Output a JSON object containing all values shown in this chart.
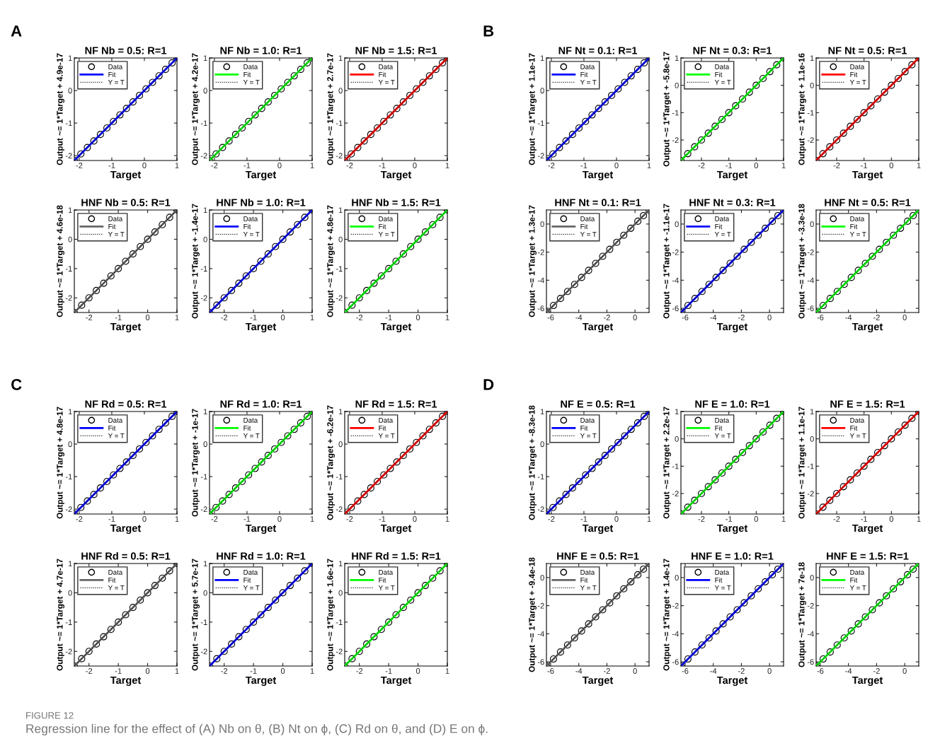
{
  "chart_data": [
    {
      "type": "scatter",
      "title": "NF Nb = 0.5: R=1",
      "xlabel": "Target",
      "ylabel": "Output ~= 1*Target + 4.9e-17",
      "annotations": [
        "A"
      ],
      "xlim": [
        -2.15,
        1
      ],
      "ylim": [
        -2.15,
        1
      ],
      "xticks": [
        -2,
        -1,
        0,
        1
      ],
      "yticks": [
        -2,
        -1,
        0,
        1
      ],
      "legend": "top left",
      "x": [
        -2.15,
        -1.95,
        -1.75,
        -1.55,
        -1.35,
        -1.15,
        -0.95,
        -0.75,
        -0.55,
        -0.35,
        -0.15,
        0.05,
        0.25,
        0.45,
        0.65,
        0.85,
        1
      ],
      "series": [
        {
          "name": "Data",
          "marker": "circle",
          "color": "#000000",
          "values": [
            -2.15,
            -1.95,
            -1.75,
            -1.55,
            -1.35,
            -1.15,
            -0.95,
            -0.75,
            -0.55,
            -0.35,
            -0.15,
            0.05,
            0.25,
            0.45,
            0.65,
            0.85,
            1
          ]
        },
        {
          "name": "Fit",
          "type": "line",
          "color": "#0000ff",
          "x": [
            -2.15,
            1
          ],
          "values": [
            -2.15,
            1
          ]
        },
        {
          "name": "Y = T",
          "type": "line",
          "line_style": "dotted",
          "color": "#000000",
          "x": [
            -2.15,
            1
          ],
          "values": [
            -2.15,
            1
          ]
        }
      ]
    },
    {
      "type": "scatter",
      "title": "NF Nb = 1.0: R=1",
      "xlabel": "Target",
      "ylabel": "Output ~= 1*Target + 4.2e-17",
      "xlim": [
        -2.15,
        1
      ],
      "ylim": [
        -2.15,
        1
      ],
      "xticks": [
        -2,
        -1,
        0,
        1
      ],
      "yticks": [
        -2,
        -1,
        0,
        1
      ],
      "legend": "top left",
      "x": [
        -2.15,
        -1.95,
        -1.75,
        -1.55,
        -1.35,
        -1.15,
        -0.95,
        -0.75,
        -0.55,
        -0.35,
        -0.15,
        0.05,
        0.25,
        0.45,
        0.65,
        0.85,
        1
      ],
      "series": [
        {
          "name": "Data",
          "marker": "circle",
          "color": "#000000",
          "values": [
            -2.15,
            -1.95,
            -1.75,
            -1.55,
            -1.35,
            -1.15,
            -0.95,
            -0.75,
            -0.55,
            -0.35,
            -0.15,
            0.05,
            0.25,
            0.45,
            0.65,
            0.85,
            1
          ]
        },
        {
          "name": "Fit",
          "type": "line",
          "color": "#00ff00",
          "x": [
            -2.15,
            1
          ],
          "values": [
            -2.15,
            1
          ]
        },
        {
          "name": "Y = T",
          "type": "line",
          "line_style": "dotted",
          "color": "#000000",
          "x": [
            -2.15,
            1
          ],
          "values": [
            -2.15,
            1
          ]
        }
      ]
    },
    {
      "type": "scatter",
      "title": "NF Nb = 1.5: R=1",
      "xlabel": "Target",
      "ylabel": "Output ~= 1*Target + 2.7e-17",
      "xlim": [
        -2.15,
        1
      ],
      "ylim": [
        -2.15,
        1
      ],
      "xticks": [
        -2,
        -1,
        0,
        1
      ],
      "yticks": [
        -2,
        -1,
        0,
        1
      ],
      "legend": "top left",
      "x": [
        -2.15,
        -1.95,
        -1.75,
        -1.55,
        -1.35,
        -1.15,
        -0.95,
        -0.75,
        -0.55,
        -0.35,
        -0.15,
        0.05,
        0.25,
        0.45,
        0.65,
        0.85,
        1
      ],
      "series": [
        {
          "name": "Data",
          "marker": "circle",
          "color": "#000000",
          "values": [
            -2.15,
            -1.95,
            -1.75,
            -1.55,
            -1.35,
            -1.15,
            -0.95,
            -0.75,
            -0.55,
            -0.35,
            -0.15,
            0.05,
            0.25,
            0.45,
            0.65,
            0.85,
            1
          ]
        },
        {
          "name": "Fit",
          "type": "line",
          "color": "#ff0000",
          "x": [
            -2.15,
            1
          ],
          "values": [
            -2.15,
            1
          ]
        },
        {
          "name": "Y = T",
          "type": "line",
          "line_style": "dotted",
          "color": "#000000",
          "x": [
            -2.15,
            1
          ],
          "values": [
            -2.15,
            1
          ]
        }
      ]
    },
    {
      "type": "scatter",
      "title": "HNF Nb = 0.5: R=1",
      "xlabel": "Target",
      "ylabel": "Output ~= 1*Target + 4.6e-18",
      "xlim": [
        -2.5,
        1
      ],
      "ylim": [
        -2.5,
        1
      ],
      "xticks": [
        -2,
        -1,
        0,
        1
      ],
      "yticks": [
        -2,
        -1,
        0,
        1
      ],
      "legend": "top left",
      "x": [
        -2.5,
        -2.25,
        -2,
        -1.75,
        -1.5,
        -1.25,
        -1,
        -0.75,
        -0.5,
        -0.25,
        0,
        0.25,
        0.5,
        0.75,
        1
      ],
      "series": [
        {
          "name": "Data",
          "marker": "circle",
          "color": "#000000",
          "values": [
            -2.5,
            -2.25,
            -2,
            -1.75,
            -1.5,
            -1.25,
            -1,
            -0.75,
            -0.5,
            -0.25,
            0,
            0.25,
            0.5,
            0.75,
            1
          ]
        },
        {
          "name": "Fit",
          "type": "line",
          "color": "#666666",
          "x": [
            -2.5,
            1
          ],
          "values": [
            -2.5,
            1
          ]
        },
        {
          "name": "Y = T",
          "type": "line",
          "line_style": "dotted",
          "color": "#000000",
          "x": [
            -2.5,
            1
          ],
          "values": [
            -2.5,
            1
          ]
        }
      ]
    },
    {
      "type": "scatter",
      "title": "HNF Nb = 1.0: R=1",
      "xlabel": "Target",
      "ylabel": "Output ~= 1*Target + -1.4e-17",
      "xlim": [
        -2.5,
        1
      ],
      "ylim": [
        -2.5,
        1
      ],
      "xticks": [
        -2,
        -1,
        0,
        1
      ],
      "yticks": [
        -2,
        -1,
        0,
        1
      ],
      "legend": "top left",
      "x": [
        -2.5,
        -2.25,
        -2,
        -1.75,
        -1.5,
        -1.25,
        -1,
        -0.75,
        -0.5,
        -0.25,
        0,
        0.25,
        0.5,
        0.75,
        1
      ],
      "series": [
        {
          "name": "Data",
          "marker": "circle",
          "color": "#000000",
          "values": [
            -2.5,
            -2.25,
            -2,
            -1.75,
            -1.5,
            -1.25,
            -1,
            -0.75,
            -0.5,
            -0.25,
            0,
            0.25,
            0.5,
            0.75,
            1
          ]
        },
        {
          "name": "Fit",
          "type": "line",
          "color": "#0000ff",
          "x": [
            -2.5,
            1
          ],
          "values": [
            -2.5,
            1
          ]
        },
        {
          "name": "Y = T",
          "type": "line",
          "line_style": "dotted",
          "color": "#000000",
          "x": [
            -2.5,
            1
          ],
          "values": [
            -2.5,
            1
          ]
        }
      ]
    },
    {
      "type": "scatter",
      "title": "HNF Nb = 1.5: R=1",
      "xlabel": "Target",
      "ylabel": "Output ~= 1*Target + 4.8e-17",
      "xlim": [
        -2.5,
        1
      ],
      "ylim": [
        -2.5,
        1
      ],
      "xticks": [
        -2,
        -1,
        0,
        1
      ],
      "yticks": [
        -2,
        -1,
        0,
        1
      ],
      "legend": "top left",
      "x": [
        -2.5,
        -2.25,
        -2,
        -1.75,
        -1.5,
        -1.25,
        -1,
        -0.75,
        -0.5,
        -0.25,
        0,
        0.25,
        0.5,
        0.75,
        1
      ],
      "series": [
        {
          "name": "Data",
          "marker": "circle",
          "color": "#000000",
          "values": [
            -2.5,
            -2.25,
            -2,
            -1.75,
            -1.5,
            -1.25,
            -1,
            -0.75,
            -0.5,
            -0.25,
            0,
            0.25,
            0.5,
            0.75,
            1
          ]
        },
        {
          "name": "Fit",
          "type": "line",
          "color": "#00ff00",
          "x": [
            -2.5,
            1
          ],
          "values": [
            -2.5,
            1
          ]
        },
        {
          "name": "Y = T",
          "type": "line",
          "line_style": "dotted",
          "color": "#000000",
          "x": [
            -2.5,
            1
          ],
          "values": [
            -2.5,
            1
          ]
        }
      ]
    },
    {
      "type": "scatter",
      "title": "NF Nt = 0.1: R=1",
      "xlabel": "Target",
      "ylabel": "Output ~= 1*Target + 1.1e-17",
      "annotations": [
        "B"
      ],
      "xlim": [
        -2.15,
        1
      ],
      "ylim": [
        -2.15,
        1
      ],
      "xticks": [
        -2,
        -1,
        0,
        1
      ],
      "yticks": [
        -2,
        -1,
        0,
        1
      ],
      "legend": "top left",
      "x": [
        -2.15,
        -1.95,
        -1.75,
        -1.55,
        -1.35,
        -1.15,
        -0.95,
        -0.75,
        -0.55,
        -0.35,
        -0.15,
        0.05,
        0.25,
        0.45,
        0.65,
        0.85,
        1
      ],
      "series": [
        {
          "name": "Data",
          "marker": "circle",
          "color": "#000000",
          "values": [
            -2.15,
            -1.95,
            -1.75,
            -1.55,
            -1.35,
            -1.15,
            -0.95,
            -0.75,
            -0.55,
            -0.35,
            -0.15,
            0.05,
            0.25,
            0.45,
            0.65,
            0.85,
            1
          ]
        },
        {
          "name": "Fit",
          "type": "line",
          "color": "#0000ff",
          "x": [
            -2.15,
            1
          ],
          "values": [
            -2.15,
            1
          ]
        },
        {
          "name": "Y = T",
          "type": "line",
          "line_style": "dotted",
          "color": "#000000",
          "x": [
            -2.15,
            1
          ],
          "values": [
            -2.15,
            1
          ]
        }
      ]
    },
    {
      "type": "scatter",
      "title": "NF Nt = 0.3: R=1",
      "xlabel": "Target",
      "ylabel": "Output ~= 1*Target + -5.8e-17",
      "xlim": [
        -2.75,
        1
      ],
      "ylim": [
        -2.75,
        1
      ],
      "xticks": [
        -2,
        -1,
        0,
        1
      ],
      "yticks": [
        -2,
        -1,
        0,
        1
      ],
      "legend": "top left",
      "x": [
        -2.75,
        -2.5,
        -2.25,
        -2,
        -1.75,
        -1.5,
        -1.25,
        -1,
        -0.75,
        -0.5,
        -0.25,
        0,
        0.25,
        0.5,
        0.75,
        1
      ],
      "series": [
        {
          "name": "Data",
          "marker": "circle",
          "color": "#000000",
          "values": [
            -2.75,
            -2.5,
            -2.25,
            -2,
            -1.75,
            -1.5,
            -1.25,
            -1,
            -0.75,
            -0.5,
            -0.25,
            0,
            0.25,
            0.5,
            0.75,
            1
          ]
        },
        {
          "name": "Fit",
          "type": "line",
          "color": "#00ff00",
          "x": [
            -2.75,
            1
          ],
          "values": [
            -2.75,
            1
          ]
        },
        {
          "name": "Y = T",
          "type": "line",
          "line_style": "dotted",
          "color": "#000000",
          "x": [
            -2.75,
            1
          ],
          "values": [
            -2.75,
            1
          ]
        }
      ]
    },
    {
      "type": "scatter",
      "title": "NF Nt = 0.5: R=1",
      "xlabel": "Target",
      "ylabel": "Output ~= 1*Target + 1.1e-16",
      "xlim": [
        -2.75,
        1
      ],
      "ylim": [
        -2.75,
        1
      ],
      "xticks": [
        -2,
        -1,
        0,
        1
      ],
      "yticks": [
        -2,
        -1,
        0,
        1
      ],
      "legend": "top left",
      "x": [
        -2.75,
        -2.5,
        -2.25,
        -2,
        -1.75,
        -1.5,
        -1.25,
        -1,
        -0.75,
        -0.5,
        -0.25,
        0,
        0.25,
        0.5,
        0.75,
        1
      ],
      "series": [
        {
          "name": "Data",
          "marker": "circle",
          "color": "#000000",
          "values": [
            -2.75,
            -2.5,
            -2.25,
            -2,
            -1.75,
            -1.5,
            -1.25,
            -1,
            -0.75,
            -0.5,
            -0.25,
            0,
            0.25,
            0.5,
            0.75,
            1
          ]
        },
        {
          "name": "Fit",
          "type": "line",
          "color": "#ff0000",
          "x": [
            -2.75,
            1
          ],
          "values": [
            -2.75,
            1
          ]
        },
        {
          "name": "Y = T",
          "type": "line",
          "line_style": "dotted",
          "color": "#000000",
          "x": [
            -2.75,
            1
          ],
          "values": [
            -2.75,
            1
          ]
        }
      ]
    },
    {
      "type": "scatter",
      "title": "HNF Nt = 0.1: R=1",
      "xlabel": "Target",
      "ylabel": "Output ~= 1*Target + 1.3e-17",
      "xlim": [
        -6.3,
        1
      ],
      "ylim": [
        -6.3,
        1
      ],
      "xticks": [
        -6,
        -4,
        -2,
        0
      ],
      "yticks": [
        -6,
        -4,
        -2,
        0
      ],
      "legend": "top left",
      "x": [
        -6.3,
        -5.8,
        -5.3,
        -4.8,
        -4.3,
        -3.8,
        -3.3,
        -2.8,
        -2.3,
        -1.8,
        -1.3,
        -0.8,
        -0.3,
        0.2,
        0.6,
        1
      ],
      "series": [
        {
          "name": "Data",
          "marker": "circle",
          "color": "#000000",
          "values": [
            -6.3,
            -5.8,
            -5.3,
            -4.8,
            -4.3,
            -3.8,
            -3.3,
            -2.8,
            -2.3,
            -1.8,
            -1.3,
            -0.8,
            -0.3,
            0.2,
            0.6,
            1
          ]
        },
        {
          "name": "Fit",
          "type": "line",
          "color": "#666666",
          "x": [
            -6.3,
            1
          ],
          "values": [
            -6.3,
            1
          ]
        },
        {
          "name": "Y = T",
          "type": "line",
          "line_style": "dotted",
          "color": "#000000",
          "x": [
            -6.3,
            1
          ],
          "values": [
            -6.3,
            1
          ]
        }
      ]
    },
    {
      "type": "scatter",
      "title": "HNF Nt = 0.3: R=1",
      "xlabel": "Target",
      "ylabel": "Output ~= 1*Target + -1.1e-17",
      "xlim": [
        -6.3,
        1
      ],
      "ylim": [
        -6.3,
        1
      ],
      "xticks": [
        -6,
        -4,
        -2,
        0
      ],
      "yticks": [
        -6,
        -4,
        -2,
        0
      ],
      "legend": "top left",
      "x": [
        -6.3,
        -5.8,
        -5.3,
        -4.8,
        -4.3,
        -3.8,
        -3.3,
        -2.8,
        -2.3,
        -1.8,
        -1.3,
        -0.8,
        -0.3,
        0.2,
        0.6,
        1
      ],
      "series": [
        {
          "name": "Data",
          "marker": "circle",
          "color": "#000000",
          "values": [
            -6.3,
            -5.8,
            -5.3,
            -4.8,
            -4.3,
            -3.8,
            -3.3,
            -2.8,
            -2.3,
            -1.8,
            -1.3,
            -0.8,
            -0.3,
            0.2,
            0.6,
            1
          ]
        },
        {
          "name": "Fit",
          "type": "line",
          "color": "#0000ff",
          "x": [
            -6.3,
            1
          ],
          "values": [
            -6.3,
            1
          ]
        },
        {
          "name": "Y = T",
          "type": "line",
          "line_style": "dotted",
          "color": "#000000",
          "x": [
            -6.3,
            1
          ],
          "values": [
            -6.3,
            1
          ]
        }
      ]
    },
    {
      "type": "scatter",
      "title": "HNF Nt = 0.5: R=1",
      "xlabel": "Target",
      "ylabel": "Output ~= 1*Target + -3.3e-18",
      "xlim": [
        -6.3,
        1
      ],
      "ylim": [
        -6.3,
        1
      ],
      "xticks": [
        -6,
        -4,
        -2,
        0
      ],
      "yticks": [
        -6,
        -4,
        -2,
        0
      ],
      "legend": "top left",
      "x": [
        -6.3,
        -5.8,
        -5.3,
        -4.8,
        -4.3,
        -3.8,
        -3.3,
        -2.8,
        -2.3,
        -1.8,
        -1.3,
        -0.8,
        -0.3,
        0.2,
        0.6,
        1
      ],
      "series": [
        {
          "name": "Data",
          "marker": "circle",
          "color": "#000000",
          "values": [
            -6.3,
            -5.8,
            -5.3,
            -4.8,
            -4.3,
            -3.8,
            -3.3,
            -2.8,
            -2.3,
            -1.8,
            -1.3,
            -0.8,
            -0.3,
            0.2,
            0.6,
            1
          ]
        },
        {
          "name": "Fit",
          "type": "line",
          "color": "#00ff00",
          "x": [
            -6.3,
            1
          ],
          "values": [
            -6.3,
            1
          ]
        },
        {
          "name": "Y = T",
          "type": "line",
          "line_style": "dotted",
          "color": "#000000",
          "x": [
            -6.3,
            1
          ],
          "values": [
            -6.3,
            1
          ]
        }
      ]
    },
    {
      "type": "scatter",
      "title": "NF Rd = 0.5: R=1",
      "xlabel": "Target",
      "ylabel": "Output ~= 1*Target + 4.8e-17",
      "annotations": [
        "C"
      ],
      "xlim": [
        -2.15,
        1
      ],
      "ylim": [
        -2.15,
        1
      ],
      "xticks": [
        -2,
        -1,
        0,
        1
      ],
      "yticks": [
        -2,
        -1,
        0,
        1
      ],
      "legend": "top left",
      "x": [
        -2.15,
        -1.95,
        -1.75,
        -1.55,
        -1.35,
        -1.15,
        -0.95,
        -0.75,
        -0.55,
        -0.35,
        -0.15,
        0.05,
        0.25,
        0.45,
        0.65,
        0.85,
        1
      ],
      "series": [
        {
          "name": "Data",
          "marker": "circle",
          "color": "#000000",
          "values": [
            -2.15,
            -1.95,
            -1.75,
            -1.55,
            -1.35,
            -1.15,
            -0.95,
            -0.75,
            -0.55,
            -0.35,
            -0.15,
            0.05,
            0.25,
            0.45,
            0.65,
            0.85,
            1
          ]
        },
        {
          "name": "Fit",
          "type": "line",
          "color": "#0000ff",
          "x": [
            -2.15,
            1
          ],
          "values": [
            -2.15,
            1
          ]
        },
        {
          "name": "Y = T",
          "type": "line",
          "line_style": "dotted",
          "color": "#000000",
          "x": [
            -2.15,
            1
          ],
          "values": [
            -2.15,
            1
          ]
        }
      ]
    },
    {
      "type": "scatter",
      "title": "NF Rd = 1.0: R=1",
      "xlabel": "Target",
      "ylabel": "Output ~= 1*Target + -1e-17",
      "xlim": [
        -2.15,
        1
      ],
      "ylim": [
        -2.15,
        1
      ],
      "xticks": [
        -2,
        -1,
        0,
        1
      ],
      "yticks": [
        -2,
        -1,
        0,
        1
      ],
      "legend": "top left",
      "x": [
        -2.15,
        -1.95,
        -1.75,
        -1.55,
        -1.35,
        -1.15,
        -0.95,
        -0.75,
        -0.55,
        -0.35,
        -0.15,
        0.05,
        0.25,
        0.45,
        0.65,
        0.85,
        1
      ],
      "series": [
        {
          "name": "Data",
          "marker": "circle",
          "color": "#000000",
          "values": [
            -2.15,
            -1.95,
            -1.75,
            -1.55,
            -1.35,
            -1.15,
            -0.95,
            -0.75,
            -0.55,
            -0.35,
            -0.15,
            0.05,
            0.25,
            0.45,
            0.65,
            0.85,
            1
          ]
        },
        {
          "name": "Fit",
          "type": "line",
          "color": "#00ff00",
          "x": [
            -2.15,
            1
          ],
          "values": [
            -2.15,
            1
          ]
        },
        {
          "name": "Y = T",
          "type": "line",
          "line_style": "dotted",
          "color": "#000000",
          "x": [
            -2.15,
            1
          ],
          "values": [
            -2.15,
            1
          ]
        }
      ]
    },
    {
      "type": "scatter",
      "title": "NF Rd = 1.5: R=1",
      "xlabel": "Target",
      "ylabel": "Output ~= 1*Target + -6.2e-17",
      "xlim": [
        -2.15,
        1
      ],
      "ylim": [
        -2.15,
        1
      ],
      "xticks": [
        -2,
        -1,
        0,
        1
      ],
      "yticks": [
        -2,
        -1,
        0,
        1
      ],
      "legend": "top left",
      "x": [
        -2.15,
        -1.95,
        -1.75,
        -1.55,
        -1.35,
        -1.15,
        -0.95,
        -0.75,
        -0.55,
        -0.35,
        -0.15,
        0.05,
        0.25,
        0.45,
        0.65,
        0.85,
        1
      ],
      "series": [
        {
          "name": "Data",
          "marker": "circle",
          "color": "#000000",
          "values": [
            -2.15,
            -1.95,
            -1.75,
            -1.55,
            -1.35,
            -1.15,
            -0.95,
            -0.75,
            -0.55,
            -0.35,
            -0.15,
            0.05,
            0.25,
            0.45,
            0.65,
            0.85,
            1
          ]
        },
        {
          "name": "Fit",
          "type": "line",
          "color": "#ff0000",
          "x": [
            -2.15,
            1
          ],
          "values": [
            -2.15,
            1
          ]
        },
        {
          "name": "Y = T",
          "type": "line",
          "line_style": "dotted",
          "color": "#000000",
          "x": [
            -2.15,
            1
          ],
          "values": [
            -2.15,
            1
          ]
        }
      ]
    },
    {
      "type": "scatter",
      "title": "HNF Rd = 0.5: R=1",
      "xlabel": "Target",
      "ylabel": "Output ~= 1*Target + 4.7e-17",
      "xlim": [
        -2.5,
        1
      ],
      "ylim": [
        -2.5,
        1
      ],
      "xticks": [
        -2,
        -1,
        0,
        1
      ],
      "yticks": [
        -2,
        -1,
        0,
        1
      ],
      "legend": "top left",
      "x": [
        -2.5,
        -2.25,
        -2,
        -1.75,
        -1.5,
        -1.25,
        -1,
        -0.75,
        -0.5,
        -0.25,
        0,
        0.25,
        0.5,
        0.75,
        1
      ],
      "series": [
        {
          "name": "Data",
          "marker": "circle",
          "color": "#000000",
          "values": [
            -2.5,
            -2.25,
            -2,
            -1.75,
            -1.5,
            -1.25,
            -1,
            -0.75,
            -0.5,
            -0.25,
            0,
            0.25,
            0.5,
            0.75,
            1
          ]
        },
        {
          "name": "Fit",
          "type": "line",
          "color": "#666666",
          "x": [
            -2.5,
            1
          ],
          "values": [
            -2.5,
            1
          ]
        },
        {
          "name": "Y = T",
          "type": "line",
          "line_style": "dotted",
          "color": "#000000",
          "x": [
            -2.5,
            1
          ],
          "values": [
            -2.5,
            1
          ]
        }
      ]
    },
    {
      "type": "scatter",
      "title": "HNF Rd = 1.0: R=1",
      "xlabel": "Target",
      "ylabel": "Output ~= 1*Target + 5.7e-17",
      "xlim": [
        -2.5,
        1
      ],
      "ylim": [
        -2.5,
        1
      ],
      "xticks": [
        -2,
        -1,
        0,
        1
      ],
      "yticks": [
        -2,
        -1,
        0,
        1
      ],
      "legend": "top left",
      "x": [
        -2.5,
        -2.25,
        -2,
        -1.75,
        -1.5,
        -1.25,
        -1,
        -0.75,
        -0.5,
        -0.25,
        0,
        0.25,
        0.5,
        0.75,
        1
      ],
      "series": [
        {
          "name": "Data",
          "marker": "circle",
          "color": "#000000",
          "values": [
            -2.5,
            -2.25,
            -2,
            -1.75,
            -1.5,
            -1.25,
            -1,
            -0.75,
            -0.5,
            -0.25,
            0,
            0.25,
            0.5,
            0.75,
            1
          ]
        },
        {
          "name": "Fit",
          "type": "line",
          "color": "#0000ff",
          "x": [
            -2.5,
            1
          ],
          "values": [
            -2.5,
            1
          ]
        },
        {
          "name": "Y = T",
          "type": "line",
          "line_style": "dotted",
          "color": "#000000",
          "x": [
            -2.5,
            1
          ],
          "values": [
            -2.5,
            1
          ]
        }
      ]
    },
    {
      "type": "scatter",
      "title": "HNF Rd = 1.5: R=1",
      "xlabel": "Target",
      "ylabel": "Output ~= 1*Target + 1.6e-17",
      "xlim": [
        -2.5,
        1
      ],
      "ylim": [
        -2.5,
        1
      ],
      "xticks": [
        -2,
        -1,
        0,
        1
      ],
      "yticks": [
        -2,
        -1,
        0,
        1
      ],
      "legend": "top left",
      "x": [
        -2.5,
        -2.25,
        -2,
        -1.75,
        -1.5,
        -1.25,
        -1,
        -0.75,
        -0.5,
        -0.25,
        0,
        0.25,
        0.5,
        0.75,
        1
      ],
      "series": [
        {
          "name": "Data",
          "marker": "circle",
          "color": "#000000",
          "values": [
            -2.5,
            -2.25,
            -2,
            -1.75,
            -1.5,
            -1.25,
            -1,
            -0.75,
            -0.5,
            -0.25,
            0,
            0.25,
            0.5,
            0.75,
            1
          ]
        },
        {
          "name": "Fit",
          "type": "line",
          "color": "#00ff00",
          "x": [
            -2.5,
            1
          ],
          "values": [
            -2.5,
            1
          ]
        },
        {
          "name": "Y = T",
          "type": "line",
          "line_style": "dotted",
          "color": "#000000",
          "x": [
            -2.5,
            1
          ],
          "values": [
            -2.5,
            1
          ]
        }
      ]
    },
    {
      "type": "scatter",
      "title": "NF E = 0.5: R=1",
      "xlabel": "Target",
      "ylabel": "Output ~= 1*Target + -8.3e-18",
      "annotations": [
        "D"
      ],
      "xlim": [
        -2.15,
        1
      ],
      "ylim": [
        -2.15,
        1
      ],
      "xticks": [
        -2,
        -1,
        0,
        1
      ],
      "yticks": [
        -2,
        -1,
        0,
        1
      ],
      "legend": "top left",
      "x": [
        -2.15,
        -1.95,
        -1.75,
        -1.55,
        -1.35,
        -1.15,
        -0.95,
        -0.75,
        -0.55,
        -0.35,
        -0.15,
        0.05,
        0.25,
        0.45,
        0.65,
        0.85,
        1
      ],
      "series": [
        {
          "name": "Data",
          "marker": "circle",
          "color": "#000000",
          "values": [
            -2.15,
            -1.95,
            -1.75,
            -1.55,
            -1.35,
            -1.15,
            -0.95,
            -0.75,
            -0.55,
            -0.35,
            -0.15,
            0.05,
            0.25,
            0.45,
            0.65,
            0.85,
            1
          ]
        },
        {
          "name": "Fit",
          "type": "line",
          "color": "#0000ff",
          "x": [
            -2.15,
            1
          ],
          "values": [
            -2.15,
            1
          ]
        },
        {
          "name": "Y = T",
          "type": "line",
          "line_style": "dotted",
          "color": "#000000",
          "x": [
            -2.15,
            1
          ],
          "values": [
            -2.15,
            1
          ]
        }
      ]
    },
    {
      "type": "scatter",
      "title": "NF E = 1.0: R=1",
      "xlabel": "Target",
      "ylabel": "Output ~= 1*Target + 2.2e-17",
      "xlim": [
        -2.75,
        1
      ],
      "ylim": [
        -2.75,
        1
      ],
      "xticks": [
        -2,
        -1,
        0,
        1
      ],
      "yticks": [
        -2,
        -1,
        0,
        1
      ],
      "legend": "top left",
      "x": [
        -2.75,
        -2.5,
        -2.25,
        -2,
        -1.75,
        -1.5,
        -1.25,
        -1,
        -0.75,
        -0.5,
        -0.25,
        0,
        0.25,
        0.5,
        0.75,
        1
      ],
      "series": [
        {
          "name": "Data",
          "marker": "circle",
          "color": "#000000",
          "values": [
            -2.75,
            -2.5,
            -2.25,
            -2,
            -1.75,
            -1.5,
            -1.25,
            -1,
            -0.75,
            -0.5,
            -0.25,
            0,
            0.25,
            0.5,
            0.75,
            1
          ]
        },
        {
          "name": "Fit",
          "type": "line",
          "color": "#00ff00",
          "x": [
            -2.75,
            1
          ],
          "values": [
            -2.75,
            1
          ]
        },
        {
          "name": "Y = T",
          "type": "line",
          "line_style": "dotted",
          "color": "#000000",
          "x": [
            -2.75,
            1
          ],
          "values": [
            -2.75,
            1
          ]
        }
      ]
    },
    {
      "type": "scatter",
      "title": "NF E = 1.5: R=1",
      "xlabel": "Target",
      "ylabel": "Output ~= 1*Target + 1.1e-17",
      "xlim": [
        -2.75,
        1
      ],
      "ylim": [
        -2.75,
        1
      ],
      "xticks": [
        -2,
        -1,
        0,
        1
      ],
      "yticks": [
        -2,
        -1,
        0,
        1
      ],
      "legend": "top left",
      "x": [
        -2.75,
        -2.5,
        -2.25,
        -2,
        -1.75,
        -1.5,
        -1.25,
        -1,
        -0.75,
        -0.5,
        -0.25,
        0,
        0.25,
        0.5,
        0.75,
        1
      ],
      "series": [
        {
          "name": "Data",
          "marker": "circle",
          "color": "#000000",
          "values": [
            -2.75,
            -2.5,
            -2.25,
            -2,
            -1.75,
            -1.5,
            -1.25,
            -1,
            -0.75,
            -0.5,
            -0.25,
            0,
            0.25,
            0.5,
            0.75,
            1
          ]
        },
        {
          "name": "Fit",
          "type": "line",
          "color": "#ff0000",
          "x": [
            -2.75,
            1
          ],
          "values": [
            -2.75,
            1
          ]
        },
        {
          "name": "Y = T",
          "type": "line",
          "line_style": "dotted",
          "color": "#000000",
          "x": [
            -2.75,
            1
          ],
          "values": [
            -2.75,
            1
          ]
        }
      ]
    },
    {
      "type": "scatter",
      "title": "HNF E = 0.5: R=1",
      "xlabel": "Target",
      "ylabel": "Output ~= 1*Target + -9.4e-18",
      "xlim": [
        -6.3,
        1
      ],
      "ylim": [
        -6.3,
        1
      ],
      "xticks": [
        -6,
        -4,
        -2,
        0
      ],
      "yticks": [
        -6,
        -4,
        -2,
        0
      ],
      "legend": "top left",
      "x": [
        -6.3,
        -5.8,
        -5.3,
        -4.8,
        -4.3,
        -3.8,
        -3.3,
        -2.8,
        -2.3,
        -1.8,
        -1.3,
        -0.8,
        -0.3,
        0.2,
        0.6,
        1
      ],
      "series": [
        {
          "name": "Data",
          "marker": "circle",
          "color": "#000000",
          "values": [
            -6.3,
            -5.8,
            -5.3,
            -4.8,
            -4.3,
            -3.8,
            -3.3,
            -2.8,
            -2.3,
            -1.8,
            -1.3,
            -0.8,
            -0.3,
            0.2,
            0.6,
            1
          ]
        },
        {
          "name": "Fit",
          "type": "line",
          "color": "#666666",
          "x": [
            -6.3,
            1
          ],
          "values": [
            -6.3,
            1
          ]
        },
        {
          "name": "Y = T",
          "type": "line",
          "line_style": "dotted",
          "color": "#000000",
          "x": [
            -6.3,
            1
          ],
          "values": [
            -6.3,
            1
          ]
        }
      ]
    },
    {
      "type": "scatter",
      "title": "HNF E = 1.0: R=1",
      "xlabel": "Target",
      "ylabel": "Output ~= 1*Target + 1.4e-17",
      "xlim": [
        -6.3,
        1
      ],
      "ylim": [
        -6.3,
        1
      ],
      "xticks": [
        -6,
        -4,
        -2,
        0
      ],
      "yticks": [
        -6,
        -4,
        -2,
        0
      ],
      "legend": "top left",
      "x": [
        -6.3,
        -5.8,
        -5.3,
        -4.8,
        -4.3,
        -3.8,
        -3.3,
        -2.8,
        -2.3,
        -1.8,
        -1.3,
        -0.8,
        -0.3,
        0.2,
        0.6,
        1
      ],
      "series": [
        {
          "name": "Data",
          "marker": "circle",
          "color": "#000000",
          "values": [
            -6.3,
            -5.8,
            -5.3,
            -4.8,
            -4.3,
            -3.8,
            -3.3,
            -2.8,
            -2.3,
            -1.8,
            -1.3,
            -0.8,
            -0.3,
            0.2,
            0.6,
            1
          ]
        },
        {
          "name": "Fit",
          "type": "line",
          "color": "#0000ff",
          "x": [
            -6.3,
            1
          ],
          "values": [
            -6.3,
            1
          ]
        },
        {
          "name": "Y = T",
          "type": "line",
          "line_style": "dotted",
          "color": "#000000",
          "x": [
            -6.3,
            1
          ],
          "values": [
            -6.3,
            1
          ]
        }
      ]
    },
    {
      "type": "scatter",
      "title": "HNF E = 1.5: R=1",
      "xlabel": "Target",
      "ylabel": "Output ~= 1*Target + 7e-18",
      "annotations": [
        "FIGURE 12",
        "Regression line for the effect of (A) Nb on θ, (B) Nt on ϕ, (C) Rd on θ, and (D) E on ϕ."
      ],
      "xlim": [
        -6.3,
        1
      ],
      "ylim": [
        -6.3,
        1
      ],
      "xticks": [
        -6,
        -4,
        -2,
        0
      ],
      "yticks": [
        -6,
        -4,
        -2,
        0
      ],
      "legend": "top left",
      "x": [
        -6.3,
        -5.8,
        -5.3,
        -4.8,
        -4.3,
        -3.8,
        -3.3,
        -2.8,
        -2.3,
        -1.8,
        -1.3,
        -0.8,
        -0.3,
        0.2,
        0.6,
        1
      ],
      "series": [
        {
          "name": "Data",
          "marker": "circle",
          "color": "#000000",
          "values": [
            -6.3,
            -5.8,
            -5.3,
            -4.8,
            -4.3,
            -3.8,
            -3.3,
            -2.8,
            -2.3,
            -1.8,
            -1.3,
            -0.8,
            -0.3,
            0.2,
            0.6,
            1
          ]
        },
        {
          "name": "Fit",
          "type": "line",
          "color": "#00ff00",
          "x": [
            -6.3,
            1
          ],
          "values": [
            -6.3,
            1
          ]
        },
        {
          "name": "Y = T",
          "type": "line",
          "line_style": "dotted",
          "color": "#000000",
          "x": [
            -6.3,
            1
          ],
          "values": [
            -6.3,
            1
          ]
        }
      ]
    }
  ]
}
